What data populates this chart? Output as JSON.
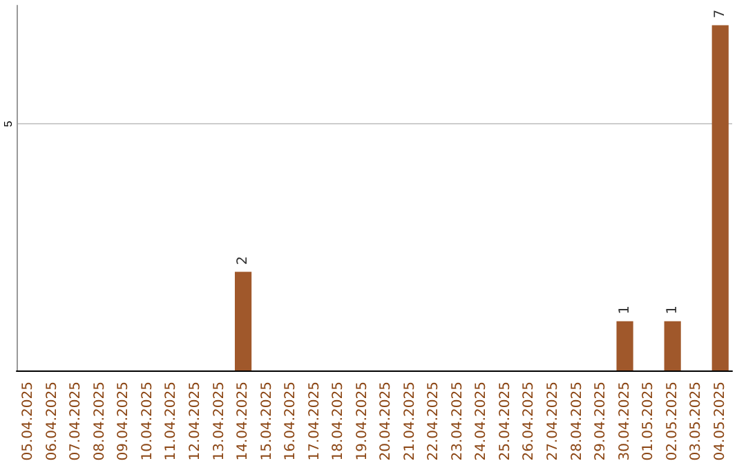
{
  "chart_data": {
    "type": "bar",
    "categories": [
      "05.04.2025",
      "06.04.2025",
      "07.04.2025",
      "08.04.2025",
      "09.04.2025",
      "10.04.2025",
      "11.04.2025",
      "12.04.2025",
      "13.04.2025",
      "14.04.2025",
      "15.04.2025",
      "16.04.2025",
      "17.04.2025",
      "18.04.2025",
      "19.04.2025",
      "20.04.2025",
      "21.04.2025",
      "22.04.2025",
      "23.04.2025",
      "24.04.2025",
      "25.04.2025",
      "26.04.2025",
      "27.04.2025",
      "28.04.2025",
      "29.04.2025",
      "30.04.2025",
      "01.05.2025",
      "02.05.2025",
      "03.05.2025",
      "04.05.2025"
    ],
    "values": [
      0,
      0,
      0,
      0,
      0,
      0,
      0,
      0,
      0,
      2,
      0,
      0,
      0,
      0,
      0,
      0,
      0,
      0,
      0,
      0,
      0,
      0,
      0,
      0,
      0,
      1,
      0,
      1,
      0,
      7
    ],
    "value_labels": [
      null,
      null,
      null,
      null,
      null,
      null,
      null,
      null,
      null,
      "2",
      null,
      null,
      null,
      null,
      null,
      null,
      null,
      null,
      null,
      null,
      null,
      null,
      null,
      null,
      null,
      "1",
      null,
      "1",
      null,
      "7"
    ],
    "color": "#a0582b",
    "ylim": [
      0,
      7.4
    ],
    "yticks": [
      5
    ],
    "grid": "y"
  }
}
